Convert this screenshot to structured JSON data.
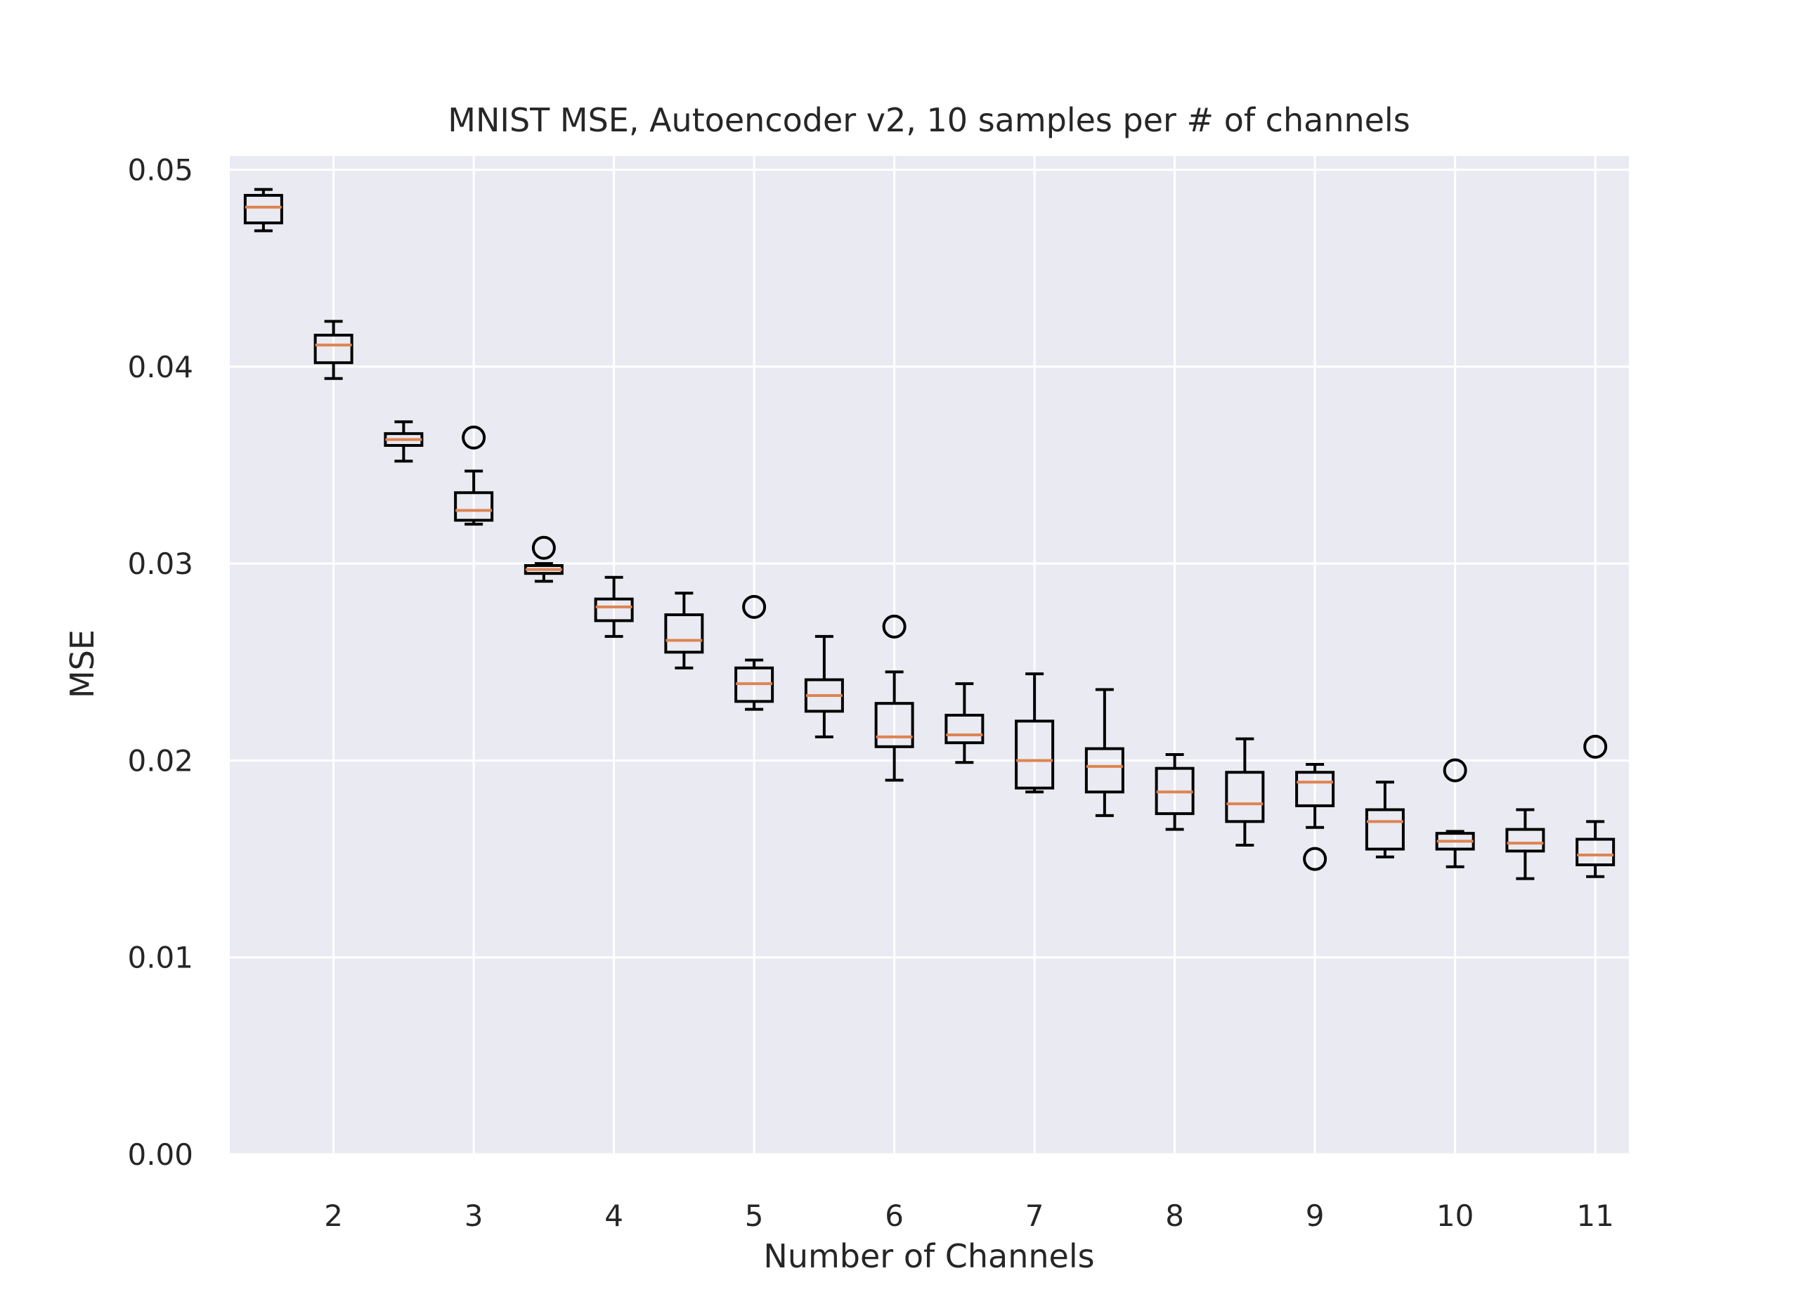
{
  "chart_data": {
    "type": "boxplot",
    "title": "MNIST MSE, Autoencoder v2, 10 samples per # of channels",
    "xlabel": "Number of Channels",
    "ylabel": "MSE",
    "ylim": [
      0,
      0.0507
    ],
    "xlim": [
      1.26,
      11.24
    ],
    "xticks": [
      2,
      3,
      4,
      5,
      6,
      7,
      8,
      9,
      10,
      11
    ],
    "xtick_labels": [
      "2",
      "3",
      "4",
      "5",
      "6",
      "7",
      "8",
      "9",
      "10",
      "11"
    ],
    "yticks": [
      0.0,
      0.01,
      0.02,
      0.03,
      0.04,
      0.05
    ],
    "ytick_labels": [
      "0.00",
      "0.01",
      "0.02",
      "0.03",
      "0.04",
      "0.05"
    ],
    "grid": true,
    "colors": {
      "background": "#eaeaf2",
      "grid": "#ffffff",
      "box": "#000000",
      "median": "#dd8452"
    },
    "boxes": [
      {
        "x": 1.5,
        "whislo": 0.0469,
        "q1": 0.0473,
        "med": 0.0481,
        "q3": 0.0487,
        "whishi": 0.049,
        "fliers": []
      },
      {
        "x": 2.0,
        "whislo": 0.0394,
        "q1": 0.0402,
        "med": 0.0411,
        "q3": 0.0416,
        "whishi": 0.0423,
        "fliers": []
      },
      {
        "x": 2.5,
        "whislo": 0.0352,
        "q1": 0.036,
        "med": 0.0363,
        "q3": 0.0366,
        "whishi": 0.0372,
        "fliers": []
      },
      {
        "x": 3.0,
        "whislo": 0.032,
        "q1": 0.0322,
        "med": 0.0327,
        "q3": 0.0336,
        "whishi": 0.0347,
        "fliers": [
          0.0364
        ]
      },
      {
        "x": 3.5,
        "whislo": 0.0291,
        "q1": 0.0295,
        "med": 0.0297,
        "q3": 0.0299,
        "whishi": 0.03,
        "fliers": [
          0.0308
        ]
      },
      {
        "x": 4.0,
        "whislo": 0.0263,
        "q1": 0.0271,
        "med": 0.0278,
        "q3": 0.0282,
        "whishi": 0.0293,
        "fliers": []
      },
      {
        "x": 4.5,
        "whislo": 0.0247,
        "q1": 0.0255,
        "med": 0.0261,
        "q3": 0.0274,
        "whishi": 0.0285,
        "fliers": []
      },
      {
        "x": 5.0,
        "whislo": 0.0226,
        "q1": 0.023,
        "med": 0.0239,
        "q3": 0.0247,
        "whishi": 0.0251,
        "fliers": [
          0.0278
        ]
      },
      {
        "x": 5.5,
        "whislo": 0.0212,
        "q1": 0.0225,
        "med": 0.0233,
        "q3": 0.0241,
        "whishi": 0.0263,
        "fliers": []
      },
      {
        "x": 6.0,
        "whislo": 0.019,
        "q1": 0.0207,
        "med": 0.0212,
        "q3": 0.0229,
        "whishi": 0.0245,
        "fliers": [
          0.0268
        ]
      },
      {
        "x": 6.5,
        "whislo": 0.0199,
        "q1": 0.0209,
        "med": 0.0213,
        "q3": 0.0223,
        "whishi": 0.0239,
        "fliers": []
      },
      {
        "x": 7.0,
        "whislo": 0.0184,
        "q1": 0.0186,
        "med": 0.02,
        "q3": 0.022,
        "whishi": 0.0244,
        "fliers": []
      },
      {
        "x": 7.5,
        "whislo": 0.0172,
        "q1": 0.0184,
        "med": 0.0197,
        "q3": 0.0206,
        "whishi": 0.0236,
        "fliers": []
      },
      {
        "x": 8.0,
        "whislo": 0.0165,
        "q1": 0.0173,
        "med": 0.0184,
        "q3": 0.0196,
        "whishi": 0.0203,
        "fliers": []
      },
      {
        "x": 8.5,
        "whislo": 0.0157,
        "q1": 0.0169,
        "med": 0.0178,
        "q3": 0.0194,
        "whishi": 0.0211,
        "fliers": []
      },
      {
        "x": 9.0,
        "whislo": 0.0166,
        "q1": 0.0177,
        "med": 0.0189,
        "q3": 0.0194,
        "whishi": 0.0198,
        "fliers": [
          0.015
        ]
      },
      {
        "x": 9.5,
        "whislo": 0.0151,
        "q1": 0.0155,
        "med": 0.0169,
        "q3": 0.0175,
        "whishi": 0.0189,
        "fliers": []
      },
      {
        "x": 10.0,
        "whislo": 0.0146,
        "q1": 0.0155,
        "med": 0.0159,
        "q3": 0.0163,
        "whishi": 0.0164,
        "fliers": [
          0.0195
        ]
      },
      {
        "x": 10.5,
        "whislo": 0.014,
        "q1": 0.0154,
        "med": 0.0158,
        "q3": 0.0165,
        "whishi": 0.0175,
        "fliers": []
      },
      {
        "x": 11.0,
        "whislo": 0.0141,
        "q1": 0.0147,
        "med": 0.0152,
        "q3": 0.016,
        "whishi": 0.0169,
        "fliers": [
          0.0207
        ]
      }
    ]
  }
}
